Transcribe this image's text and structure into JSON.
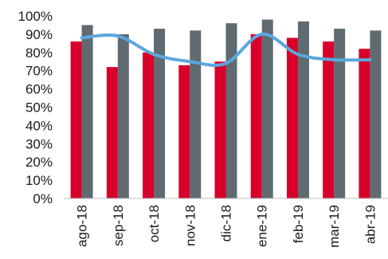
{
  "chart_data": {
    "type": "bar",
    "title": "",
    "xlabel": "",
    "ylabel": "",
    "ylim": [
      0,
      100
    ],
    "y_ticks": [
      "0%",
      "10%",
      "20%",
      "30%",
      "40%",
      "50%",
      "60%",
      "70%",
      "80%",
      "90%",
      "100%"
    ],
    "grid": false,
    "legend": "none",
    "categories": [
      "ago-18",
      "sep-18",
      "oct-18",
      "nov-18",
      "dic-18",
      "ene-19",
      "feb-19",
      "mar-19",
      "abr-19"
    ],
    "series": [
      {
        "type": "bar",
        "color": "#d6002a",
        "values": [
          86,
          72,
          80,
          73,
          75,
          90,
          88,
          86,
          82
        ]
      },
      {
        "type": "bar",
        "color": "#5f6b71",
        "values": [
          95,
          90,
          93,
          92,
          96,
          98,
          97,
          93,
          92
        ]
      },
      {
        "type": "line",
        "smooth": true,
        "color": "#5aa7de",
        "values": [
          88,
          89,
          79,
          75,
          74,
          90,
          79,
          76,
          76
        ]
      }
    ]
  }
}
